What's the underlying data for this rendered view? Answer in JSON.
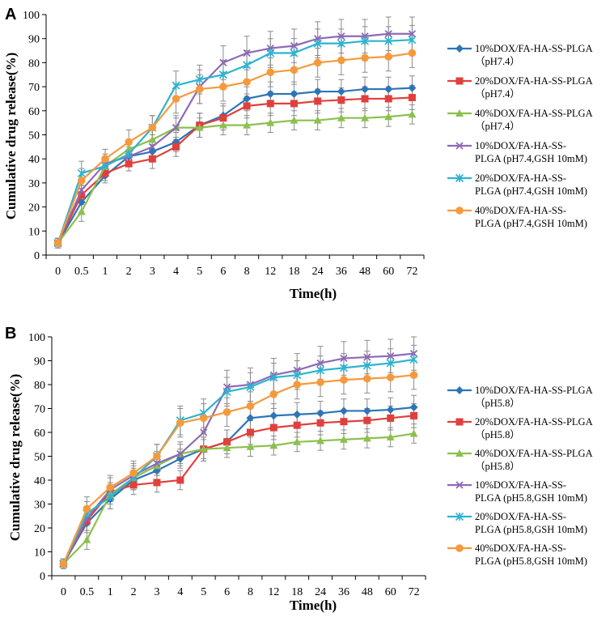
{
  "chart_data": [
    {
      "type": "line",
      "panel_label": "A",
      "xlabel": "Time(h)",
      "ylabel": "Cumulative drug release(%)",
      "ylim": [
        0,
        100
      ],
      "yticks": [
        "0",
        "10",
        "20",
        "30",
        "40",
        "50",
        "60",
        "70",
        "80",
        "90",
        "100"
      ],
      "categories": [
        "0",
        "0.5",
        "1",
        "2",
        "3",
        "4",
        "5",
        "6",
        "8",
        "12",
        "18",
        "24",
        "36",
        "48",
        "60",
        "72"
      ],
      "series": [
        {
          "name": "10%DOX/FA-HA-SS-PLGA (pH7.4)",
          "legend_lines": [
            "10%DOX/FA-HA-SS-PLGA",
            "（pH7.4）"
          ],
          "color": "#2E75B6",
          "marker": "diamond",
          "values": [
            5,
            22,
            33,
            41,
            43,
            47,
            54,
            58,
            65,
            67,
            67,
            68,
            68,
            69,
            69,
            69.5
          ],
          "errors": [
            2,
            4,
            3,
            3,
            3,
            4,
            5,
            5,
            5,
            5,
            5,
            5,
            5,
            5,
            5,
            5
          ]
        },
        {
          "name": "20%DOX/FA-HA-SS-PLGA (pH7.4)",
          "legend_lines": [
            "20%DOX/FA-HA-SS-PLGA",
            "（pH7.4）"
          ],
          "color": "#E0403D",
          "marker": "square",
          "values": [
            5,
            25,
            34,
            38,
            40,
            45,
            54,
            57,
            62,
            63,
            63,
            64,
            64.5,
            65,
            65,
            65.5
          ],
          "errors": [
            2,
            4,
            3,
            3,
            4,
            4,
            5,
            5,
            5,
            5,
            5,
            5,
            5,
            5,
            5,
            5
          ]
        },
        {
          "name": "40%DOX/FA-HA-SS-PLGA (pH7.4)",
          "legend_lines": [
            "40%DOX/FA-HA-SS-PLGA",
            "（pH7.4）"
          ],
          "color": "#8CC04F",
          "marker": "triangle",
          "values": [
            5,
            18,
            37,
            44,
            48,
            53,
            53,
            54,
            54,
            55,
            56,
            56,
            57,
            57,
            57.5,
            58.5
          ],
          "errors": [
            2,
            4,
            3,
            4,
            4,
            4,
            4,
            4,
            4,
            4,
            4,
            4,
            4,
            4,
            4,
            4
          ]
        },
        {
          "name": "10%DOX/FA-HA-SS-PLGA (pH7.4,GSH 10mM)",
          "legend_lines": [
            "10%DOX/FA-HA-SS-",
            "PLGA (pH7.4,GSH 10mM)"
          ],
          "color": "#8E6AB5",
          "marker": "x",
          "values": [
            5,
            27,
            38,
            41,
            45,
            53,
            70,
            80,
            84,
            86,
            87,
            90,
            91,
            91,
            92,
            92
          ],
          "errors": [
            2,
            5,
            4,
            4,
            5,
            5,
            7,
            7,
            7,
            7,
            7,
            7,
            7,
            7,
            7,
            7
          ]
        },
        {
          "name": "20%DOX/FA-HA-SS-PLGA (pH7.4,GSH 10mM)",
          "legend_lines": [
            "20%DOX/FA-HA-SS-",
            "PLGA (pH7.4,GSH 10mM)"
          ],
          "color": "#2DB3CF",
          "marker": "star",
          "values": [
            5,
            34,
            37,
            42,
            53,
            70.5,
            73,
            75,
            79,
            84,
            84,
            88,
            88,
            89,
            89,
            89.5
          ],
          "errors": [
            2,
            5,
            4,
            4,
            5,
            6,
            6,
            6,
            6,
            6,
            6,
            6,
            6,
            6,
            6,
            6
          ]
        },
        {
          "name": "40%DOX/FA-HA-SS-PLGA (pH7.4,GSH 10mM)",
          "legend_lines": [
            "40%DOX/FA-HA-SS-",
            "PLGA (pH7.4,GSH 10mM)"
          ],
          "color": "#F59A3C",
          "marker": "circle",
          "values": [
            5,
            31,
            40,
            47,
            53,
            65,
            69,
            70,
            72,
            76,
            77,
            80,
            81,
            82,
            82.5,
            84
          ],
          "errors": [
            2,
            5,
            4,
            5,
            5,
            6,
            6,
            6,
            6,
            6,
            6,
            6,
            6,
            6,
            6,
            6
          ]
        }
      ]
    },
    {
      "type": "line",
      "panel_label": "B",
      "xlabel": "Time(h)",
      "ylabel": "Cumulative drug release(%)",
      "ylim": [
        0,
        100
      ],
      "yticks": [
        "0",
        "10",
        "20",
        "30",
        "40",
        "50",
        "60",
        "70",
        "80",
        "90",
        "100"
      ],
      "categories": [
        "0",
        "0.5",
        "1",
        "2",
        "3",
        "4",
        "5",
        "6",
        "8",
        "12",
        "18",
        "24",
        "36",
        "48",
        "60",
        "72"
      ],
      "series": [
        {
          "name": "10%DOX/FA-HA-SS-PLGA (pH5.8)",
          "legend_lines": [
            "10%DOX/FA-HA-SS-PLGA",
            "（pH5.8）"
          ],
          "color": "#2E75B6",
          "marker": "diamond",
          "values": [
            5,
            22,
            32,
            40,
            44,
            49,
            53,
            56,
            66,
            67,
            67.5,
            68,
            69,
            69,
            69.5,
            70.5
          ],
          "errors": [
            2,
            4,
            4,
            4,
            4,
            4,
            5,
            5,
            5,
            5,
            5,
            5,
            5,
            5,
            5,
            5
          ]
        },
        {
          "name": "20%DOX/FA-HA-SS-PLGA (pH5.8)",
          "legend_lines": [
            "20%DOX/FA-HA-SS-PLGA",
            "（pH5.8）"
          ],
          "color": "#E0403D",
          "marker": "square",
          "values": [
            5,
            23,
            35,
            38,
            39,
            40,
            53,
            56,
            60,
            62,
            63,
            64,
            64.5,
            65,
            66,
            67
          ],
          "errors": [
            2,
            4,
            4,
            4,
            4,
            4,
            5,
            5,
            5,
            5,
            5,
            5,
            5,
            5,
            5,
            5
          ]
        },
        {
          "name": "40%DOX/FA-HA-SS-PLGA (pH5.8)",
          "legend_lines": [
            "40%DOX/FA-HA-SS-PLGA",
            "（pH5.8）"
          ],
          "color": "#8CC04F",
          "marker": "triangle",
          "values": [
            5,
            15,
            34,
            41,
            46,
            51,
            53,
            53.5,
            54,
            54.5,
            56,
            56.5,
            57,
            57.5,
            58,
            59.5
          ],
          "errors": [
            2,
            4,
            4,
            4,
            4,
            4,
            4,
            4,
            4,
            4,
            4,
            4,
            4,
            4,
            4,
            4
          ]
        },
        {
          "name": "10%DOX/FA-HA-SS-PLGA (pH5.8,GSH 10mM)",
          "legend_lines": [
            "10%DOX/FA-HA-SS-",
            "PLGA (pH5.8,GSH 10mM)"
          ],
          "color": "#8E6AB5",
          "marker": "x",
          "values": [
            5,
            24,
            36,
            42,
            47,
            51,
            60,
            79,
            80,
            84,
            86,
            89,
            91,
            91.5,
            92,
            93
          ],
          "errors": [
            2,
            5,
            5,
            5,
            5,
            5,
            7,
            7,
            7,
            7,
            7,
            7,
            7,
            7,
            7,
            7
          ]
        },
        {
          "name": "20%DOX/FA-HA-SS-PLGA (pH5.8,GSH 10mM)",
          "legend_lines": [
            "20%DOX/FA-HA-SS-",
            "PLGA (pH5.8,GSH 10mM)"
          ],
          "color": "#2DB3CF",
          "marker": "star",
          "values": [
            5,
            26,
            33,
            41,
            50,
            65,
            68,
            77,
            79,
            83,
            84,
            86,
            87,
            88,
            89,
            90.5
          ],
          "errors": [
            2,
            5,
            5,
            5,
            5,
            6,
            6,
            6,
            6,
            6,
            6,
            6,
            6,
            6,
            6,
            6
          ]
        },
        {
          "name": "40%DOX/FA-HA-SS-PLGA (pH5.8,GSH 10mM)",
          "legend_lines": [
            "40%DOX/FA-HA-SS-",
            "PLGA (pH5.8,GSH 10mM)"
          ],
          "color": "#F59A3C",
          "marker": "circle",
          "values": [
            5,
            28,
            37,
            43,
            50,
            64,
            66,
            68.5,
            71,
            76,
            80,
            81,
            82,
            82.5,
            83,
            84
          ],
          "errors": [
            2,
            5,
            5,
            5,
            5,
            6,
            6,
            6,
            6,
            6,
            6,
            6,
            6,
            6,
            6,
            6
          ]
        }
      ]
    }
  ]
}
